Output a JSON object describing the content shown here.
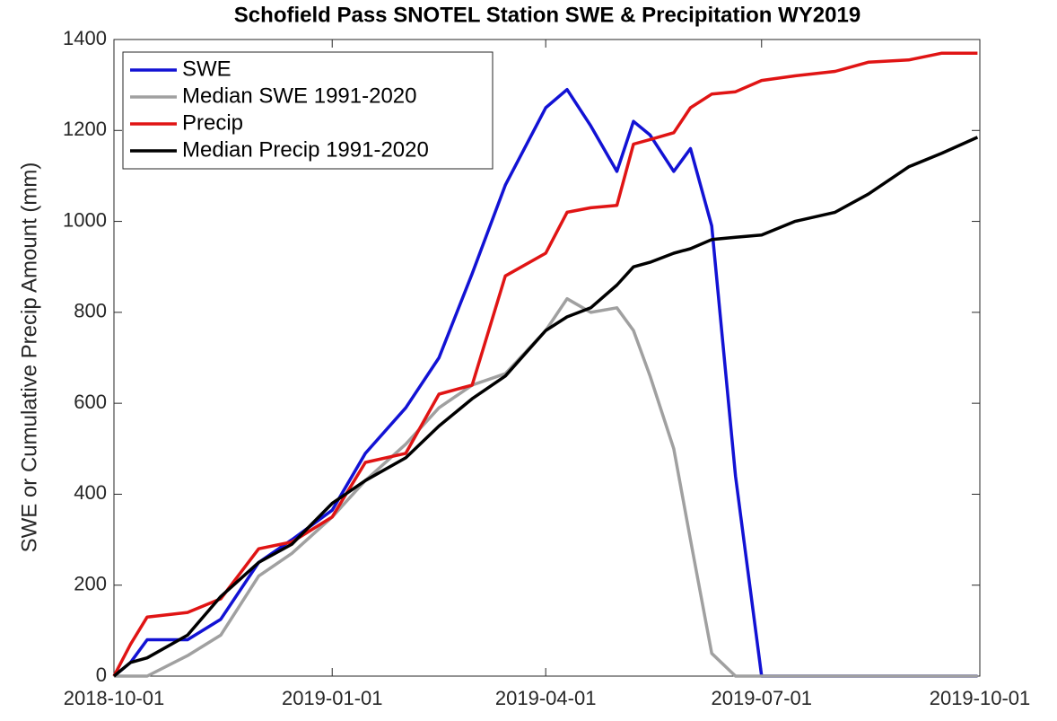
{
  "chart_data": {
    "type": "line",
    "title": "Schofield Pass SNOTEL Station SWE & Precipitation WY2019",
    "y_label": "SWE or Cumulative Precip Amount (mm)",
    "x": [
      "2018-10-01",
      "2018-10-08",
      "2018-10-15",
      "2018-11-01",
      "2018-11-15",
      "2018-12-01",
      "2018-12-15",
      "2019-01-01",
      "2019-01-15",
      "2019-02-01",
      "2019-02-15",
      "2019-03-01",
      "2019-03-15",
      "2019-04-01",
      "2019-04-10",
      "2019-04-20",
      "2019-05-01",
      "2019-05-08",
      "2019-05-15",
      "2019-05-25",
      "2019-06-01",
      "2019-06-10",
      "2019-06-20",
      "2019-07-01",
      "2019-07-15",
      "2019-08-01",
      "2019-08-15",
      "2019-09-01",
      "2019-09-15",
      "2019-09-30"
    ],
    "series": [
      {
        "name": "SWE",
        "color": "#1212d4",
        "values": [
          0,
          30,
          80,
          80,
          125,
          250,
          300,
          365,
          490,
          590,
          700,
          885,
          1080,
          1250,
          1290,
          1210,
          1110,
          1220,
          1190,
          1110,
          1160,
          990,
          440,
          0,
          0,
          0,
          0,
          0,
          0,
          0
        ]
      },
      {
        "name": "Median SWE 1991-2020",
        "color": "#a0a0a0",
        "values": [
          0,
          0,
          0,
          45,
          90,
          220,
          270,
          350,
          430,
          510,
          590,
          640,
          665,
          760,
          830,
          800,
          810,
          760,
          660,
          500,
          300,
          50,
          0,
          0,
          0,
          0,
          0,
          0,
          0,
          0
        ]
      },
      {
        "name": "Precip",
        "color": "#e01414",
        "values": [
          0,
          70,
          130,
          140,
          170,
          280,
          295,
          350,
          470,
          490,
          620,
          640,
          880,
          930,
          1020,
          1030,
          1035,
          1170,
          1180,
          1195,
          1250,
          1280,
          1285,
          1310,
          1320,
          1330,
          1350,
          1355,
          1370,
          1370
        ]
      },
      {
        "name": "Median Precip 1991-2020",
        "color": "#000000",
        "values": [
          0,
          30,
          40,
          90,
          175,
          250,
          290,
          380,
          430,
          480,
          550,
          610,
          660,
          760,
          790,
          810,
          860,
          900,
          910,
          930,
          940,
          960,
          965,
          970,
          1000,
          1020,
          1060,
          1120,
          1150,
          1185
        ]
      }
    ],
    "xlim": [
      "2018-10-01",
      "2019-10-01"
    ],
    "xticks": [
      "2018-10-01",
      "2019-01-01",
      "2019-04-01",
      "2019-07-01",
      "2019-10-01"
    ],
    "ylim": [
      0,
      1400
    ],
    "yticks": [
      0,
      200,
      400,
      600,
      800,
      1000,
      1200,
      1400
    ],
    "grid": false,
    "legend": "upper left"
  }
}
